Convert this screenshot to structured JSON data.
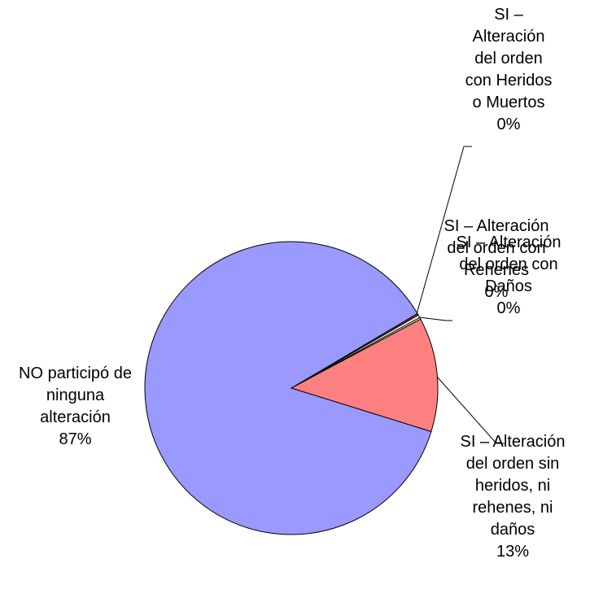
{
  "chart_data": {
    "type": "pie",
    "categories": [
      "SI – Alteración del orden con Heridos o Muertos",
      "SI – Alteración del orden con Rehenes",
      "SI – Alteración del orden con Daños",
      "SI – Alteración del orden sin heridos, ni rehenes, ni daños",
      "NO participó de ninguna alteración"
    ],
    "values": [
      0.2,
      0.3,
      0.2,
      12.6,
      86.7
    ],
    "value_labels": [
      "0%",
      "0%",
      "0%",
      "13%",
      "87%"
    ],
    "colors": [
      "#993366",
      "#ffffcc",
      "#ccffff",
      "#ff8080",
      "#9999ff"
    ]
  }
}
